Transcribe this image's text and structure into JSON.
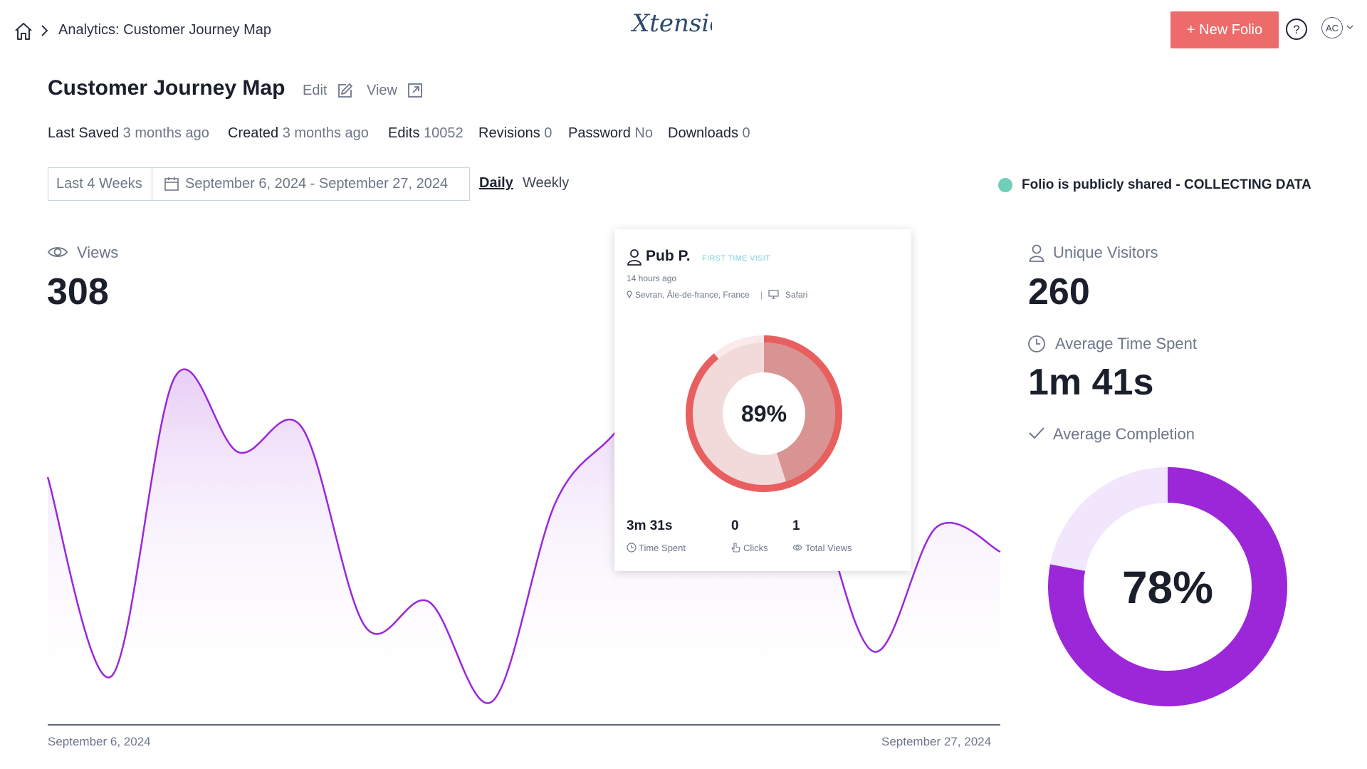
{
  "breadcrumb": {
    "label": "Analytics: Customer Journey Map"
  },
  "logo": {
    "text": "Xtensio"
  },
  "header": {
    "new_folio_label": "+ New Folio",
    "help_label": "?",
    "avatar_initials": "AC"
  },
  "title": {
    "text": "Customer Journey Map",
    "edit_label": "Edit",
    "view_label": "View"
  },
  "meta": [
    {
      "key": "Last Saved",
      "value": "3 months ago"
    },
    {
      "key": "Created",
      "value": "3 months ago"
    },
    {
      "key": "Edits",
      "value": "10052"
    },
    {
      "key": "Revisions",
      "value": "0"
    },
    {
      "key": "Password",
      "value": "No"
    },
    {
      "key": "Downloads",
      "value": "0"
    }
  ],
  "filters": {
    "preset": "Last 4 Weeks",
    "date_range": "September 6, 2024 - September 27, 2024",
    "daily_label": "Daily",
    "weekly_label": "Weekly"
  },
  "status": {
    "text": "Folio is publicly shared - COLLECTING DATA",
    "color": "#6fcfb9"
  },
  "views": {
    "label": "Views",
    "value": "308"
  },
  "chart_data": {
    "type": "area",
    "x_start_label": "September 6, 2024",
    "x_end_label": "September 27, 2024",
    "values": [
      9,
      1,
      13,
      10,
      11,
      3,
      4,
      0,
      8,
      11,
      15,
      14,
      9,
      2,
      7,
      6
    ]
  },
  "visitor_card": {
    "name": "Pub P.",
    "tag": "FIRST TIME VISIT",
    "time_ago": "14 hours ago",
    "location": "Sevran, Âle-de-france, France",
    "browser": "Safari",
    "completion": "89%",
    "completion_fraction": 0.89,
    "time_spent": "3m 31s",
    "time_spent_label": "Time Spent",
    "clicks": "0",
    "clicks_label": "Clicks",
    "total_views": "1",
    "total_views_label": "Total Views"
  },
  "stats": {
    "unique_visitors_label": "Unique Visitors",
    "unique_visitors": "260",
    "avg_time_label": "Average Time Spent",
    "avg_time": "1m 41s",
    "avg_completion_label": "Average Completion",
    "avg_completion": "78%",
    "avg_completion_fraction": 0.78
  },
  "colors": {
    "accent_button": "#ee6b6b",
    "chart_line": "#9b27d9",
    "completion_ring": "#9b27d9",
    "completion_track": "#f1e6fb",
    "card_ring": "#e85f5f"
  }
}
